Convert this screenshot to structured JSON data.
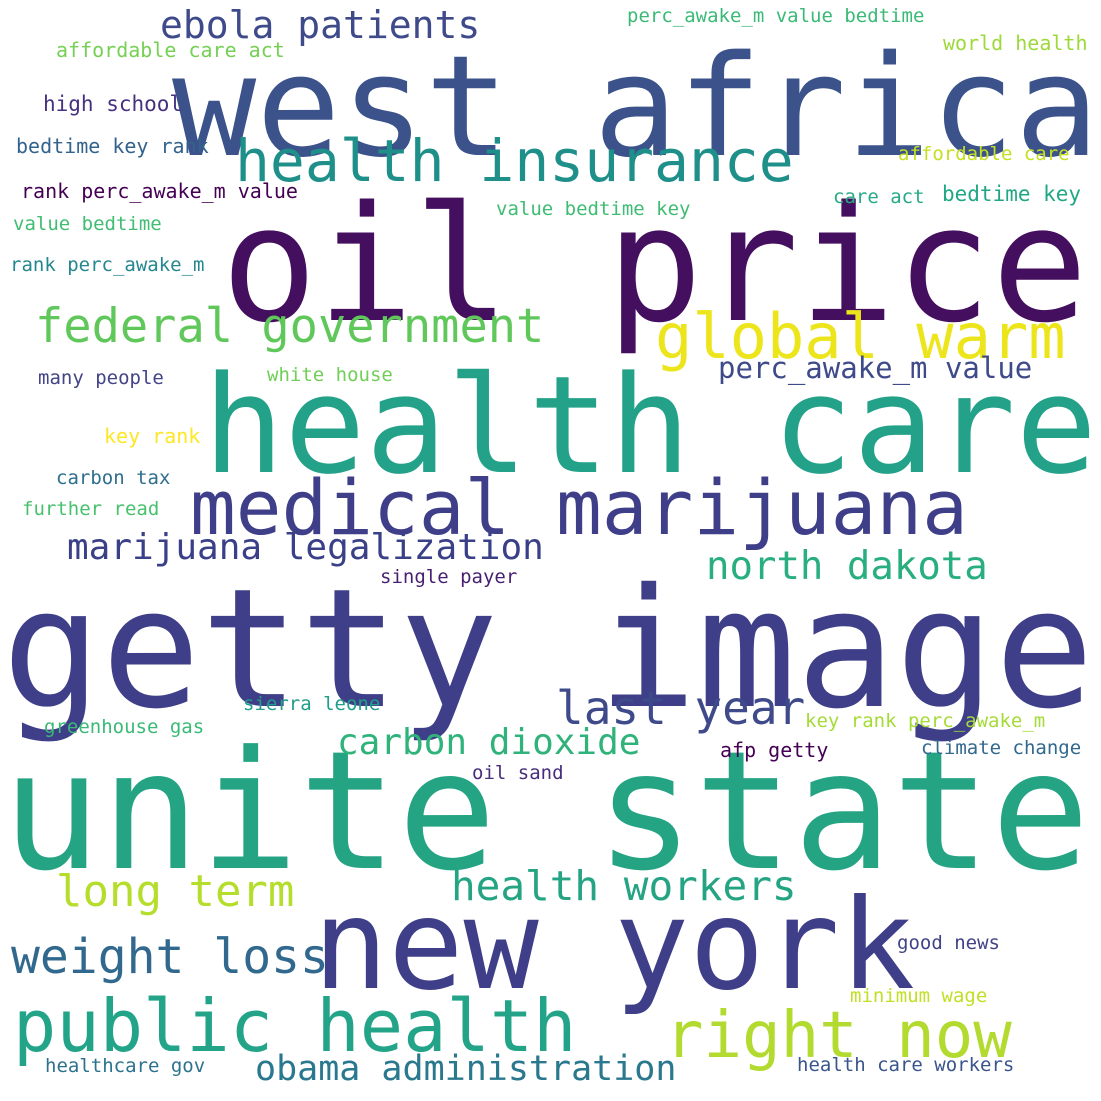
{
  "words": [
    {
      "text": "west africa",
      "color": "#3b528b"
    },
    {
      "text": "oil price",
      "color": "#440f5e"
    },
    {
      "text": "health care",
      "color": "#23a289"
    },
    {
      "text": "getty image",
      "color": "#3f3f89"
    },
    {
      "text": "unite state",
      "color": "#25a484"
    },
    {
      "text": "new york",
      "color": "#3f3f89"
    },
    {
      "text": "medical marijuana",
      "color": "#3f3f89"
    },
    {
      "text": "health insurance",
      "color": "#1f8f8a"
    },
    {
      "text": "public health",
      "color": "#23a489"
    },
    {
      "text": "global warm",
      "color": "#ede51b"
    },
    {
      "text": "right now",
      "color": "#b2da2f"
    },
    {
      "text": "federal government",
      "color": "#60c75b"
    },
    {
      "text": "ebola patients",
      "color": "#3e4a89"
    },
    {
      "text": "marijuana legalization",
      "color": "#3a4088"
    },
    {
      "text": "north dakota",
      "color": "#29af7f"
    },
    {
      "text": "last year",
      "color": "#3e4a89"
    },
    {
      "text": "carbon dioxide",
      "color": "#2fb37b"
    },
    {
      "text": "long term",
      "color": "#b5dd2b"
    },
    {
      "text": "health workers",
      "color": "#25a484"
    },
    {
      "text": "weight loss",
      "color": "#31688e"
    },
    {
      "text": "obama administration",
      "color": "#2a788e"
    },
    {
      "text": "perc_awake_m value",
      "color": "#3e4a89"
    },
    {
      "text": "perc_awake_m value bedtime",
      "color": "#3aba76"
    },
    {
      "text": "affordable care act",
      "color": "#75d054"
    },
    {
      "text": "world health",
      "color": "#9dd93b"
    },
    {
      "text": "high school",
      "color": "#46317e"
    },
    {
      "text": "bedtime key rank",
      "color": "#33638d"
    },
    {
      "text": "affordable care",
      "color": "#c5e021"
    },
    {
      "text": "rank perc_awake_m value",
      "color": "#440154"
    },
    {
      "text": "care act",
      "color": "#26a985"
    },
    {
      "text": "bedtime key",
      "color": "#22a785"
    },
    {
      "text": "value bedtime key",
      "color": "#3fbc73"
    },
    {
      "text": "value bedtime",
      "color": "#40bd72"
    },
    {
      "text": "rank perc_awake_m",
      "color": "#24878e"
    },
    {
      "text": "many people",
      "color": "#414487"
    },
    {
      "text": "white house",
      "color": "#70cf57"
    },
    {
      "text": "key rank",
      "color": "#fde725"
    },
    {
      "text": "carbon tax",
      "color": "#2e6e8e"
    },
    {
      "text": "further read",
      "color": "#48c16e"
    },
    {
      "text": "single payer",
      "color": "#481f70"
    },
    {
      "text": "sierra leone",
      "color": "#1f9e89"
    },
    {
      "text": "greenhouse gas",
      "color": "#3aba76"
    },
    {
      "text": "key rank perc_awake_m",
      "color": "#a5db36"
    },
    {
      "text": "afp getty",
      "color": "#440154"
    },
    {
      "text": "climate change",
      "color": "#31688e"
    },
    {
      "text": "oil sand",
      "color": "#472d7b"
    },
    {
      "text": "good news",
      "color": "#404387"
    },
    {
      "text": "minimum wage",
      "color": "#c0df25"
    },
    {
      "text": "healthcare gov",
      "color": "#2c728e"
    },
    {
      "text": "health care workers",
      "color": "#3a548c"
    }
  ]
}
